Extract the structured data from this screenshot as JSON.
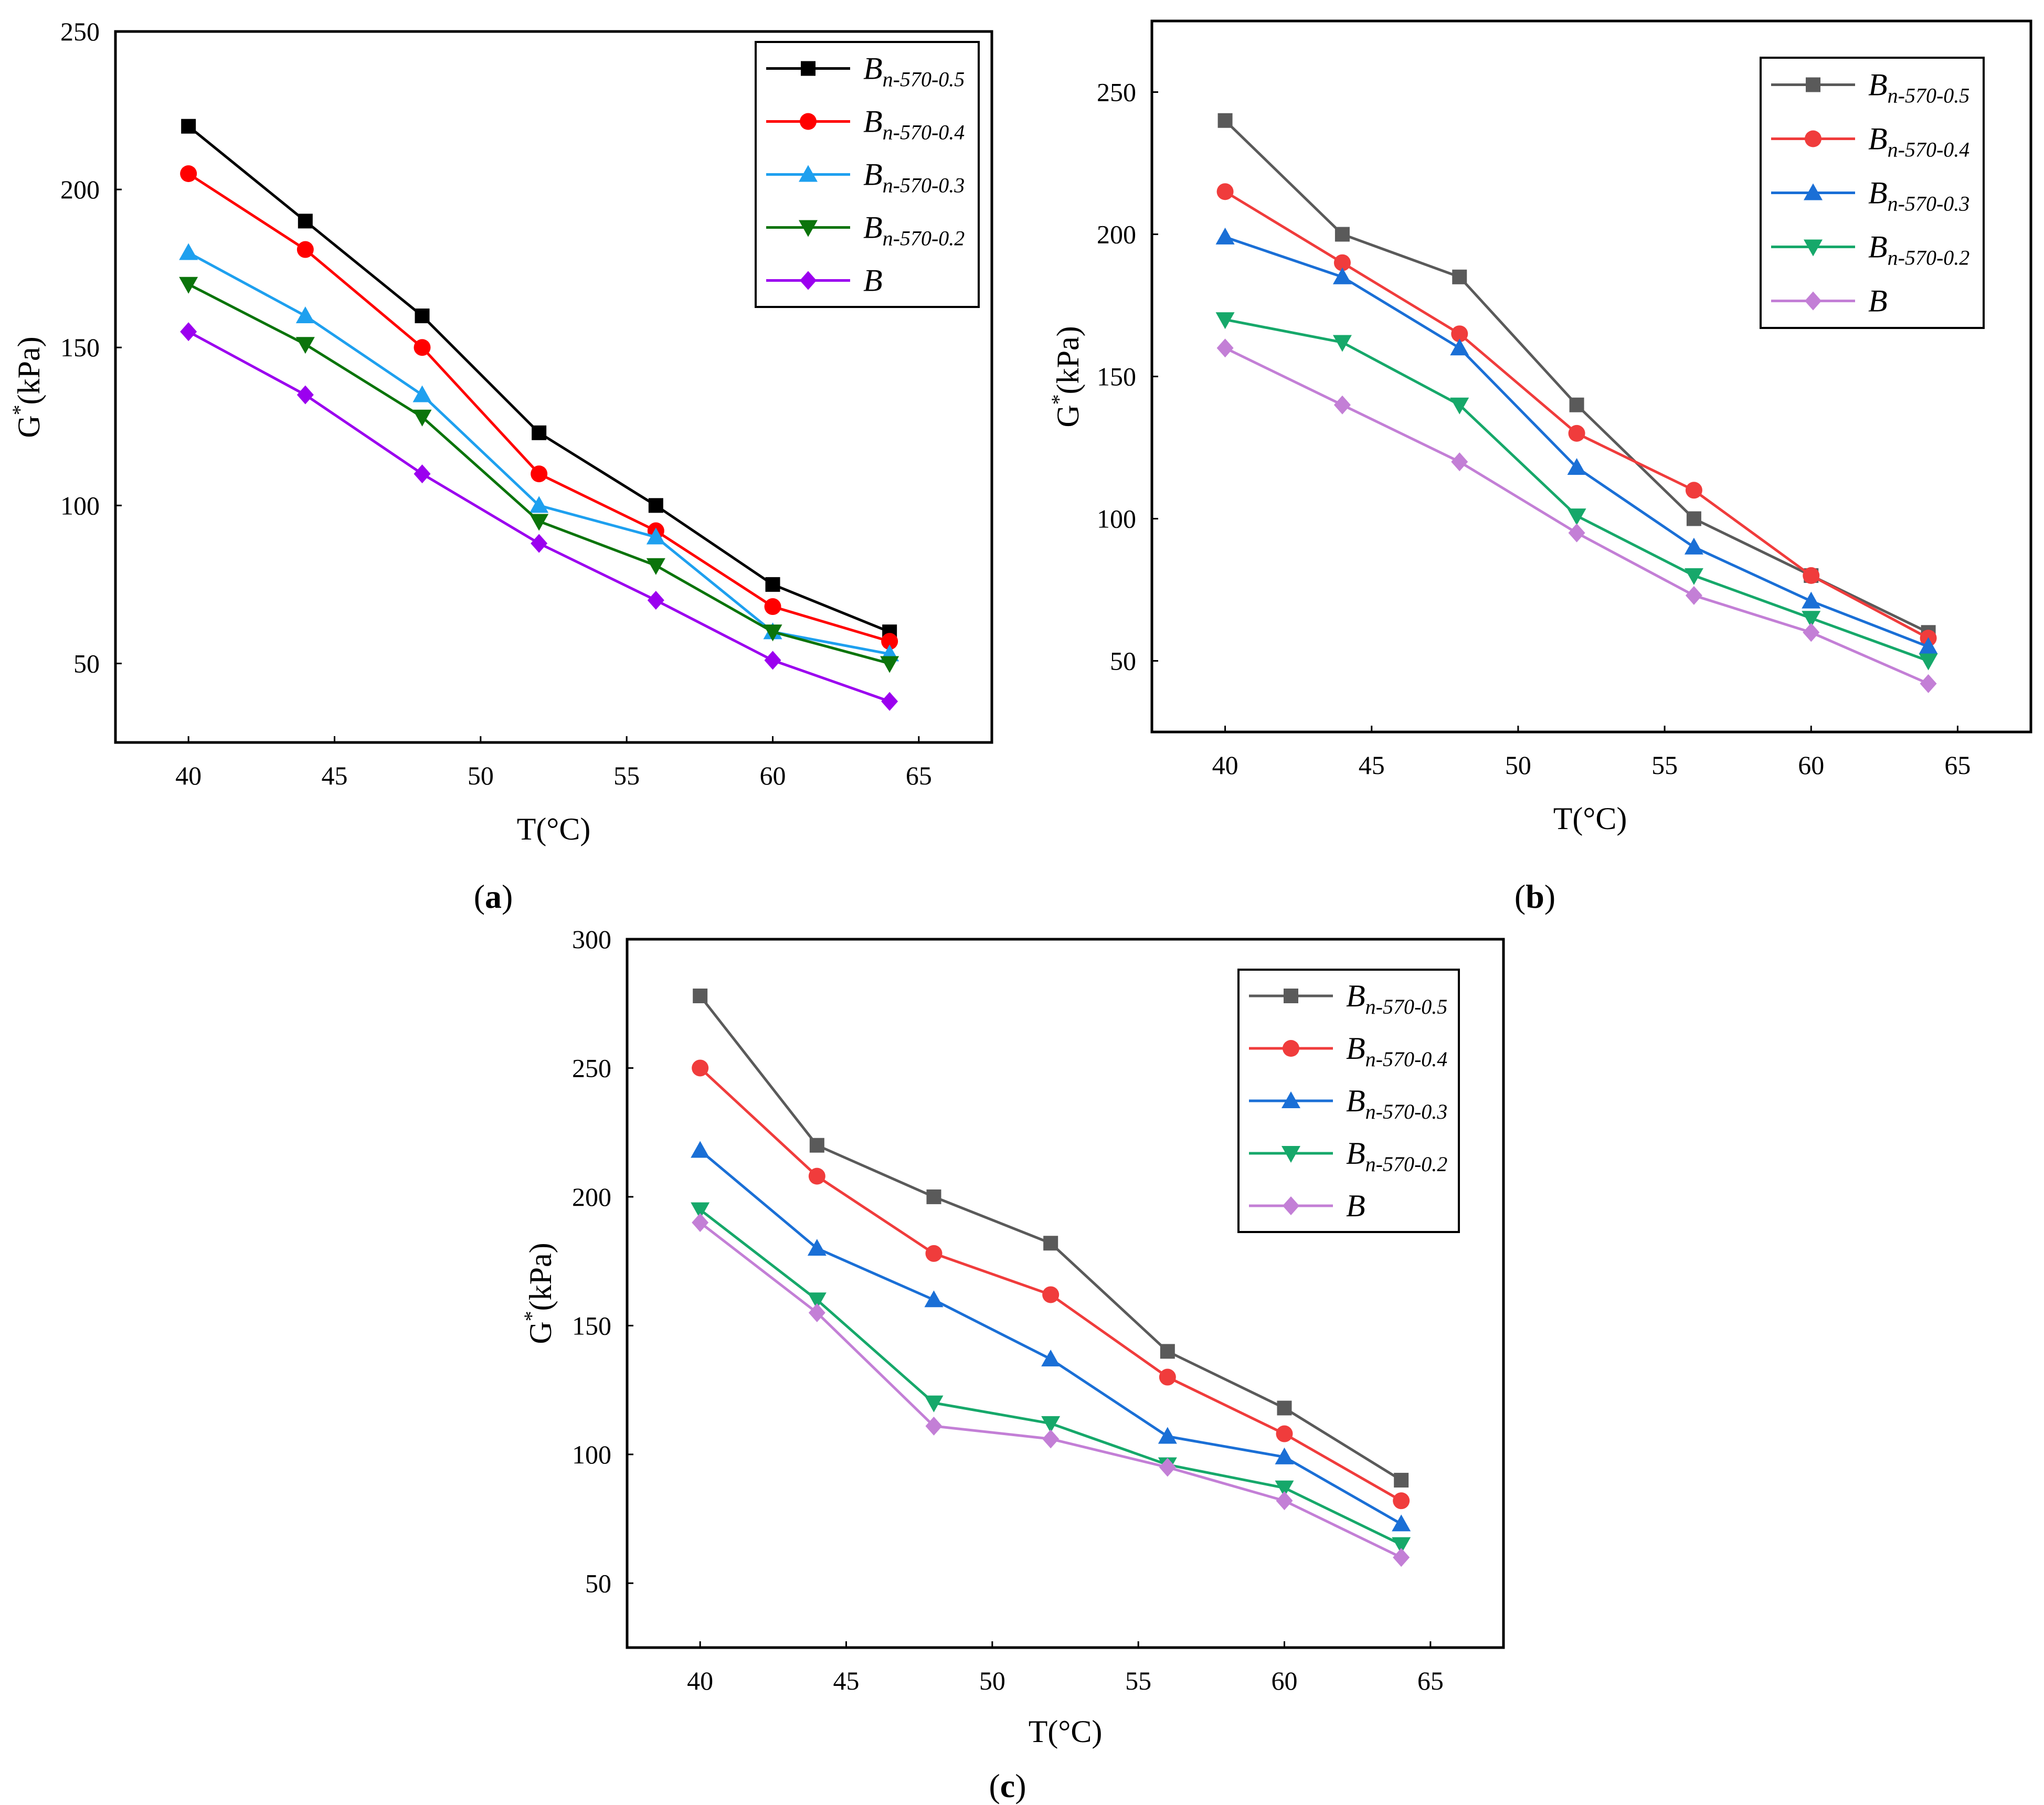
{
  "chart_data": [
    {
      "type": "line",
      "panel": "a",
      "panel_label": {
        "open": "(",
        "letter": "a",
        "close": ")"
      },
      "xlabel": "T(°C)",
      "ylabel": {
        "base": "G",
        "sup": "*",
        "rest": "(kPa)"
      },
      "xlim": [
        37.5,
        67.5
      ],
      "ylim": [
        25,
        250
      ],
      "xticks": [
        40,
        45,
        50,
        55,
        60,
        65
      ],
      "yticks": [
        50,
        100,
        150,
        200,
        250
      ],
      "grid": false,
      "legend_position": "top-right",
      "x": [
        40,
        44,
        48,
        52,
        56,
        60,
        64
      ],
      "series": [
        {
          "name": "B",
          "sub": "n-570-0.5",
          "color": "#000000",
          "marker": "square",
          "values": [
            220,
            190,
            160,
            123,
            100,
            75,
            60
          ]
        },
        {
          "name": "B",
          "sub": "n-570-0.4",
          "color": "#ff0000",
          "marker": "circle",
          "values": [
            205,
            181,
            150,
            110,
            92,
            68,
            57
          ]
        },
        {
          "name": "B",
          "sub": "n-570-0.3",
          "color": "#1ea0ef",
          "marker": "triangle-up",
          "values": [
            180,
            160,
            135,
            100,
            90,
            60,
            53
          ]
        },
        {
          "name": "B",
          "sub": "n-570-0.2",
          "color": "#0b740b",
          "marker": "triangle-down",
          "values": [
            170,
            151,
            128,
            95,
            81,
            60,
            50
          ]
        },
        {
          "name": "B",
          "sub": "",
          "color": "#9b00ef",
          "marker": "diamond",
          "values": [
            155,
            135,
            110,
            88,
            70,
            51,
            38
          ]
        }
      ]
    },
    {
      "type": "line",
      "panel": "b",
      "panel_label": {
        "open": "(",
        "letter": "b",
        "close": ")"
      },
      "xlabel": "T(°C)",
      "ylabel": {
        "base": "G",
        "sup": "*",
        "rest": "(kPa)"
      },
      "xlim": [
        37.5,
        67.5
      ],
      "ylim": [
        25,
        275
      ],
      "xticks": [
        40,
        45,
        50,
        55,
        60,
        65
      ],
      "yticks": [
        50,
        100,
        150,
        200,
        250
      ],
      "grid": false,
      "legend_position": "top-right",
      "x": [
        40,
        44,
        48,
        52,
        56,
        60,
        64
      ],
      "series": [
        {
          "name": "B",
          "sub": "n-570-0.5",
          "color": "#5a5a5a",
          "marker": "square",
          "values": [
            240,
            200,
            185,
            140,
            100,
            80,
            60
          ]
        },
        {
          "name": "B",
          "sub": "n-570-0.4",
          "color": "#f03c3c",
          "marker": "circle",
          "values": [
            215,
            190,
            165,
            130,
            110,
            80,
            58
          ]
        },
        {
          "name": "B",
          "sub": "n-570-0.3",
          "color": "#1a6fd6",
          "marker": "triangle-up",
          "values": [
            199,
            185,
            160,
            118,
            90,
            71,
            55
          ]
        },
        {
          "name": "B",
          "sub": "n-570-0.2",
          "color": "#16a86a",
          "marker": "triangle-down",
          "values": [
            170,
            162,
            140,
            101,
            80,
            65,
            50
          ]
        },
        {
          "name": "B",
          "sub": "",
          "color": "#c37fd6",
          "marker": "diamond",
          "values": [
            160,
            140,
            120,
            95,
            73,
            60,
            42
          ]
        }
      ]
    },
    {
      "type": "line",
      "panel": "c",
      "panel_label": {
        "open": "(",
        "letter": "c",
        "close": ")"
      },
      "xlabel": "T(°C)",
      "ylabel": {
        "base": "G",
        "sup": "*",
        "rest": "(kPa)"
      },
      "xlim": [
        37.5,
        67.5
      ],
      "ylim": [
        25,
        300
      ],
      "xticks": [
        40,
        45,
        50,
        55,
        60,
        65
      ],
      "yticks": [
        50,
        100,
        150,
        200,
        250,
        300
      ],
      "grid": false,
      "legend_position": "top-right",
      "x": [
        40,
        44,
        48,
        52,
        56,
        60,
        64
      ],
      "series": [
        {
          "name": "B",
          "sub": "n-570-0.5",
          "color": "#5a5a5a",
          "marker": "square",
          "values": [
            278,
            220,
            200,
            182,
            140,
            118,
            90
          ]
        },
        {
          "name": "B",
          "sub": "n-570-0.4",
          "color": "#f03c3c",
          "marker": "circle",
          "values": [
            250,
            208,
            178,
            162,
            130,
            108,
            82
          ]
        },
        {
          "name": "B",
          "sub": "n-570-0.3",
          "color": "#1a6fd6",
          "marker": "triangle-up",
          "values": [
            218,
            180,
            160,
            137,
            107,
            99,
            73
          ]
        },
        {
          "name": "B",
          "sub": "n-570-0.2",
          "color": "#16a86a",
          "marker": "triangle-down",
          "values": [
            195,
            160,
            120,
            112,
            96,
            87,
            65
          ]
        },
        {
          "name": "B",
          "sub": "",
          "color": "#c37fd6",
          "marker": "diamond",
          "values": [
            190,
            155,
            111,
            106,
            95,
            82,
            60
          ]
        }
      ]
    }
  ]
}
